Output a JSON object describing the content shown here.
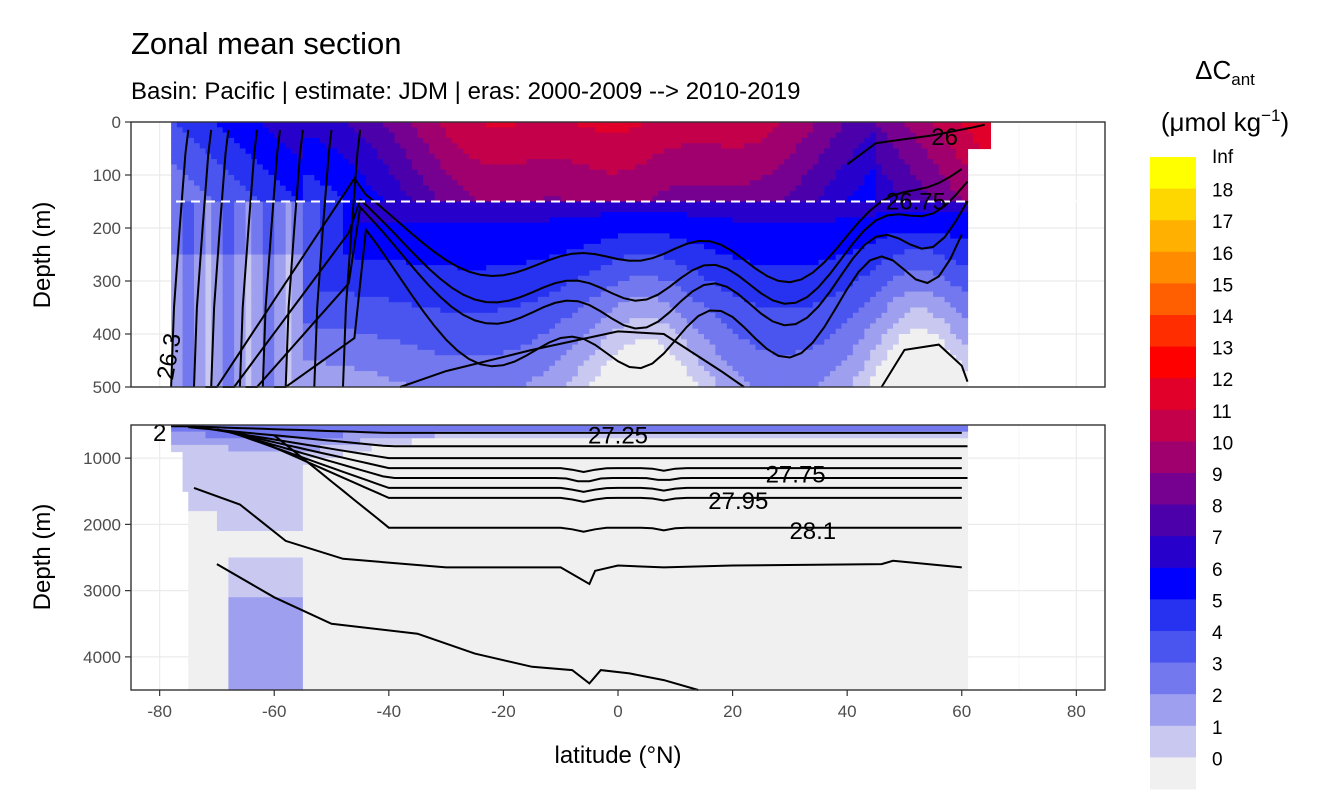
{
  "chart_data": {
    "type": "heatmap",
    "title": "Zonal mean section",
    "subtitle": "Basin: Pacific | estimate: JDM  | eras: 2000-2009 --> 2010-2019",
    "xlabel": "latitude (°N)",
    "ylabel": "Depth (m)",
    "xlim": [
      -85,
      85
    ],
    "x_ticks": [
      -80,
      -60,
      -40,
      -20,
      0,
      20,
      40,
      60,
      80
    ],
    "panels": [
      {
        "name": "upper",
        "ylim": [
          500,
          0
        ],
        "y_ticks": [
          0,
          100,
          200,
          300,
          400,
          500
        ]
      },
      {
        "name": "lower",
        "ylim": [
          4500,
          500
        ],
        "y_ticks": [
          1000,
          2000,
          3000,
          4000
        ]
      }
    ],
    "reference_line_depth": 150,
    "legend": {
      "title_main": "ΔC",
      "title_sub": "ant",
      "unit_main": "(μmol kg",
      "unit_sup": "−1",
      "unit_close": ")",
      "breaks": [
        "Inf",
        "18",
        "17",
        "16",
        "15",
        "14",
        "13",
        "12",
        "11",
        "10",
        "9",
        "8",
        "7",
        "6",
        "5",
        "4",
        "3",
        "2",
        "1",
        "0"
      ],
      "colors": [
        "#ffff00",
        "#ffd700",
        "#ffb000",
        "#ff8c00",
        "#ff5f00",
        "#ff2d00",
        "#ff0000",
        "#e0002a",
        "#c4004a",
        "#a0006e",
        "#760090",
        "#4b00aa",
        "#2800cc",
        "#0000ff",
        "#2632f0",
        "#4a55ef",
        "#7378ef",
        "#9ea0ef",
        "#c8c8f0",
        "#f0f0f0"
      ]
    },
    "contour_labels": [
      {
        "text": "26",
        "lat": 57,
        "depth": 28
      },
      {
        "text": "26.75",
        "lat": 52,
        "depth": 150
      },
      {
        "text": "26.3",
        "lat": -77,
        "depth": 430
      },
      {
        "text": "27.25",
        "lat": 0,
        "depth": 660
      },
      {
        "text": "27.75",
        "lat": 31,
        "depth": 1250
      },
      {
        "text": "27.95",
        "lat": 21,
        "depth": 1650
      },
      {
        "text": "28.1",
        "lat": 34,
        "depth": 2100
      },
      {
        "text": "2",
        "lat": -80,
        "depth": 620
      }
    ]
  }
}
